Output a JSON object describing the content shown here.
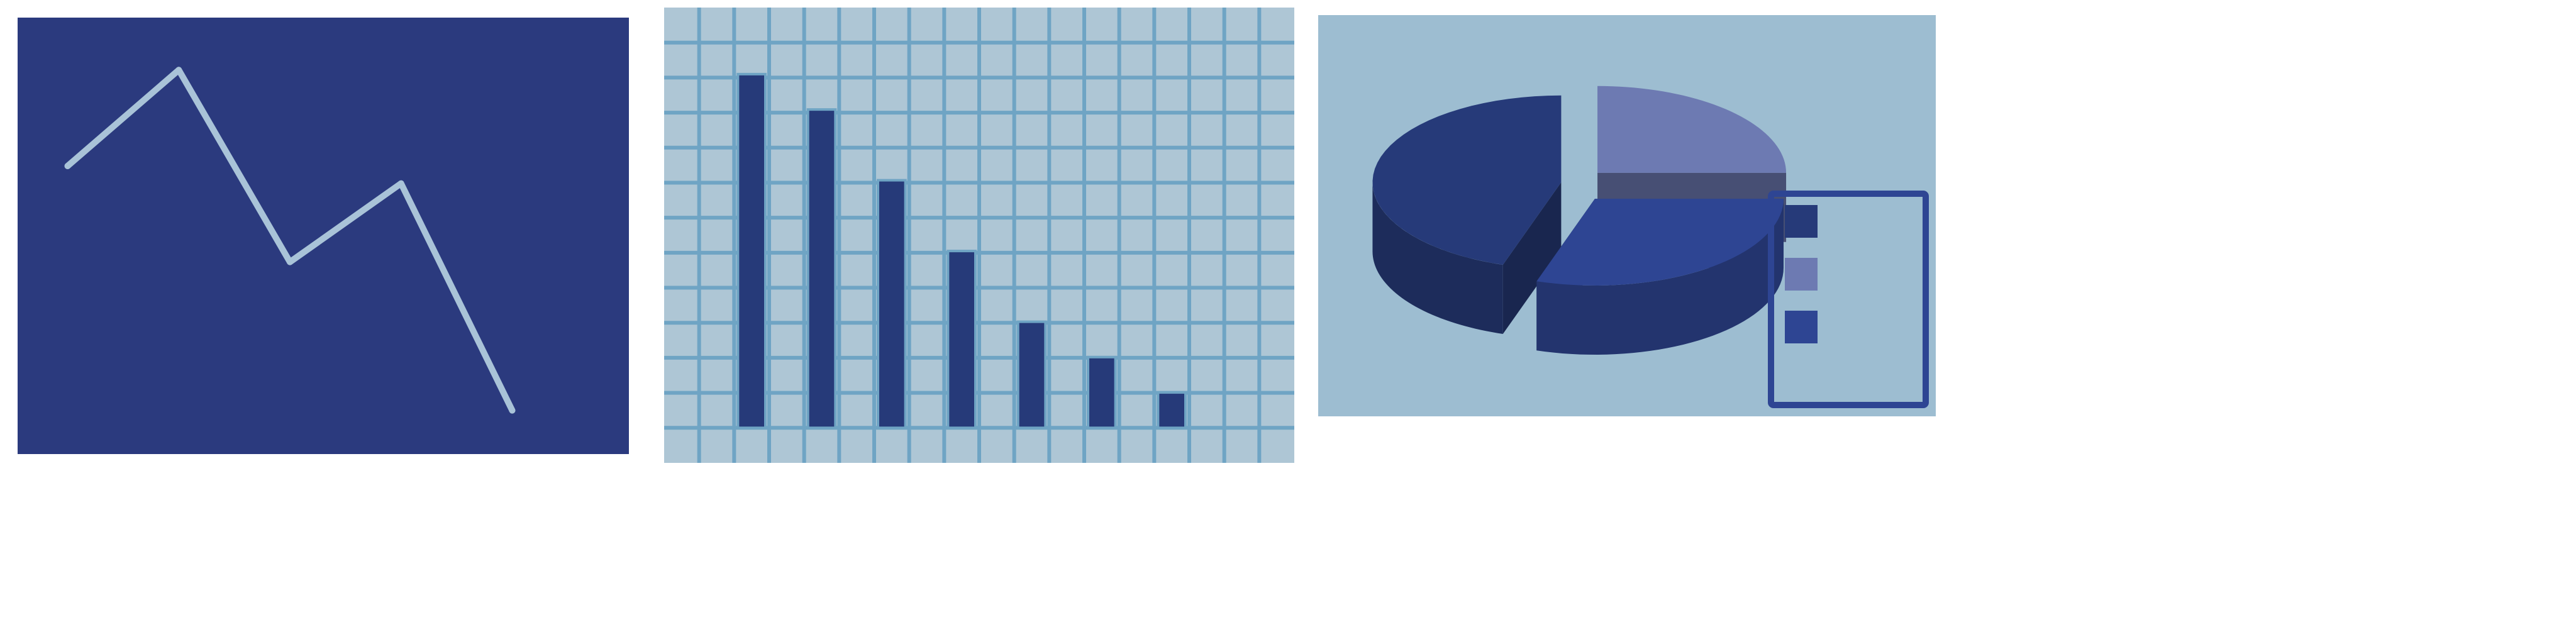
{
  "chart_data": [
    {
      "type": "line",
      "x": [
        1,
        2,
        3,
        4,
        5
      ],
      "values": [
        66,
        88,
        44,
        62,
        10
      ],
      "ylim": [
        0,
        100
      ],
      "xlim": [
        0.55,
        6.05
      ],
      "grid": false,
      "colors": {
        "background": "#2b3a7e",
        "line": "#a9c3d8"
      }
    },
    {
      "type": "bar",
      "categories": [
        "",
        "",
        "",
        "",
        "",
        "",
        ""
      ],
      "values": [
        100,
        90,
        70,
        50,
        30,
        20,
        10
      ],
      "ylim": [
        0,
        104
      ],
      "grid": true,
      "colors": {
        "background": "#aec6d5",
        "grid": "#6fa4c4",
        "bar": "#263a79"
      }
    },
    {
      "type": "pie",
      "style": "3d-exploded",
      "slices": [
        {
          "value": 45,
          "color": "#263a79"
        },
        {
          "value": 25,
          "color": "#6d7ab2"
        },
        {
          "value": 30,
          "color": "#2e4593"
        }
      ],
      "legend": "right",
      "colors": {
        "background": "#9dbdd1",
        "legend_border": "#2e4593"
      }
    }
  ]
}
